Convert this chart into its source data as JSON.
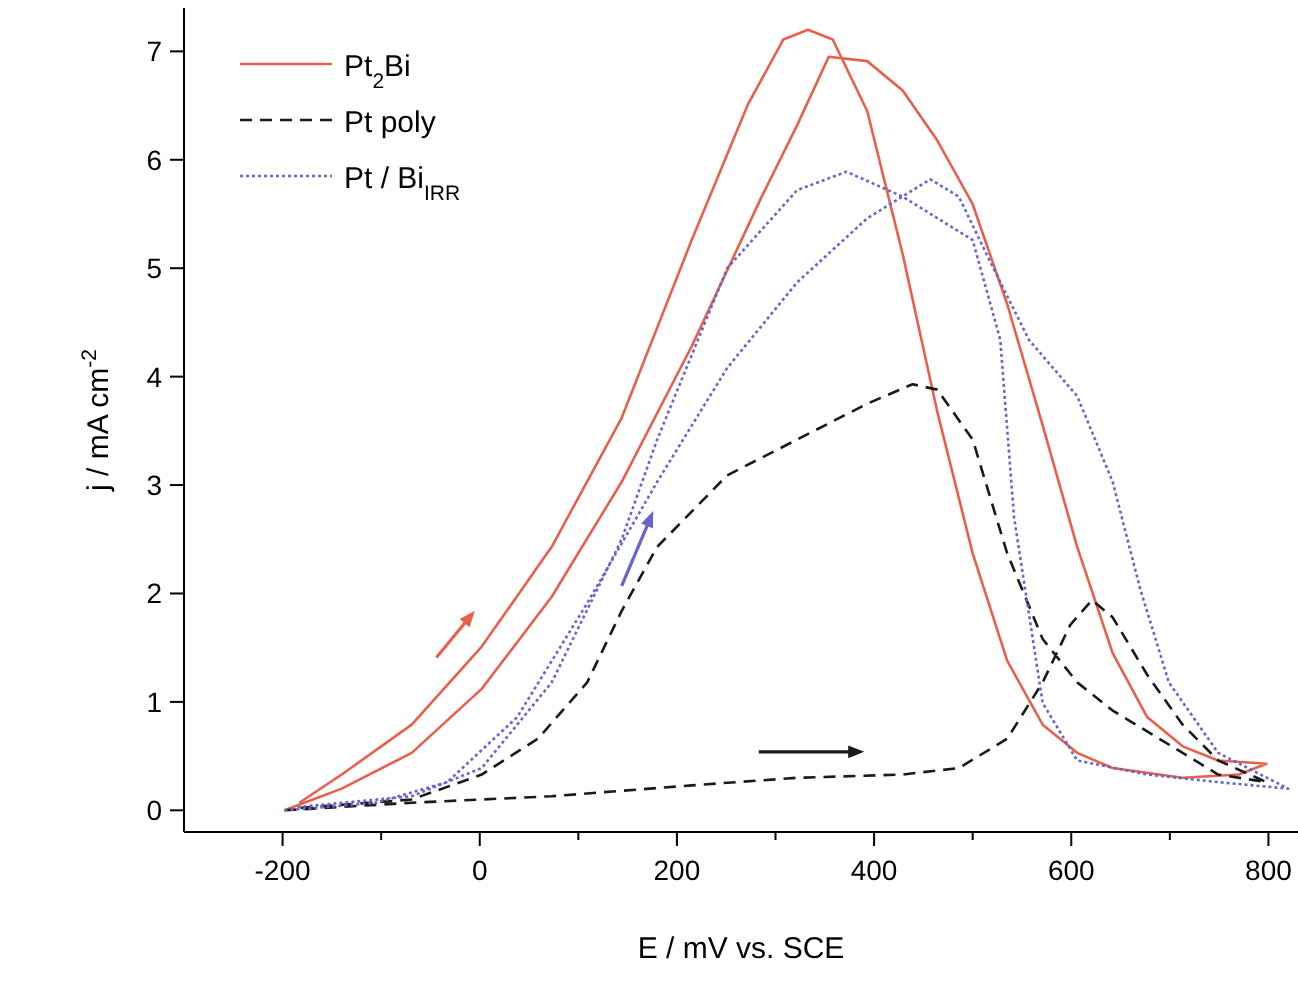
{
  "chart_data": {
    "type": "line",
    "xlabel": "E / mV vs. SCE",
    "ylabel": "j / mA cm$^{-2}$",
    "xlim": [
      -300,
      830
    ],
    "ylim": [
      -0.2,
      7.4
    ],
    "xticks": [
      -200,
      {
        "value": -100,
        "label": null
      },
      0,
      {
        "value": 100,
        "label": null
      },
      200,
      {
        "value": 300,
        "label": null
      },
      400,
      {
        "value": 500,
        "label": null
      },
      600,
      {
        "value": 700,
        "label": null
      },
      800
    ],
    "yticks": [
      0,
      1,
      2,
      3,
      4,
      5,
      6,
      7
    ],
    "grid": false,
    "legend": "top left",
    "series": [
      {
        "name": "Pt$_{2}$Bi",
        "color": "#e8604c",
        "line_style": "solid",
        "x": [
          -198,
          -140,
          -69,
          2,
          73,
          144,
          215,
          286,
          322,
          354,
          393,
          429,
          464,
          500,
          535,
          571,
          606,
          642,
          677,
          713,
          749,
          798,
          770,
          713,
          642,
          606,
          571,
          535,
          500,
          464,
          429,
          393,
          358,
          333,
          308,
          272,
          215,
          144,
          73,
          2,
          -69,
          -140,
          -183
        ],
        "values": [
          0,
          0.2,
          0.53,
          1.12,
          1.97,
          3.03,
          4.28,
          5.66,
          6.32,
          6.95,
          6.91,
          6.64,
          6.18,
          5.59,
          4.67,
          3.55,
          2.43,
          1.45,
          0.86,
          0.59,
          0.46,
          0.43,
          0.33,
          0.3,
          0.39,
          0.53,
          0.79,
          1.38,
          2.37,
          3.68,
          5.13,
          6.45,
          7.11,
          7.2,
          7.11,
          6.51,
          5.26,
          3.62,
          2.43,
          1.51,
          0.79,
          0.33,
          0.07
        ]
      },
      {
        "name": "Pt poly",
        "color": "#1a1a1a",
        "line_style": "dashed",
        "x": [
          -198,
          -69,
          73,
          215,
          322,
          429,
          486,
          535,
          571,
          599,
          621,
          642,
          677,
          713,
          749,
          798,
          749,
          713,
          642,
          606,
          571,
          535,
          500,
          464,
          439,
          393,
          322,
          251,
          180,
          144,
          109,
          59,
          2,
          -69,
          -185
        ],
        "values": [
          0,
          0.07,
          0.13,
          0.23,
          0.3,
          0.33,
          0.39,
          0.66,
          1.18,
          1.71,
          1.94,
          1.78,
          1.25,
          0.79,
          0.46,
          0.26,
          0.33,
          0.53,
          0.92,
          1.18,
          1.58,
          2.37,
          3.42,
          3.88,
          3.93,
          3.75,
          3.42,
          3.09,
          2.43,
          1.84,
          1.18,
          0.66,
          0.33,
          0.1,
          0.02
        ]
      },
      {
        "name": "Pt / Bi$_{IRR}$",
        "color": "#6666cc",
        "line_style": "dotted",
        "x": [
          -198,
          -105,
          -33,
          38,
          109,
          180,
          251,
          322,
          393,
          457,
          486,
          514,
          557,
          606,
          642,
          670,
          699,
          749,
          820,
          749,
          677,
          606,
          571,
          542,
          528,
          500,
          429,
          372,
          322,
          251,
          180,
          144,
          73,
          2,
          -69,
          -185
        ],
        "values": [
          0,
          0.07,
          0.26,
          0.86,
          1.91,
          3.03,
          4.08,
          4.87,
          5.46,
          5.82,
          5.66,
          5.13,
          4.34,
          3.82,
          3.03,
          2.04,
          1.18,
          0.53,
          0.2,
          0.26,
          0.33,
          0.46,
          0.99,
          2.7,
          4.34,
          5.26,
          5.66,
          5.89,
          5.72,
          5.0,
          3.42,
          2.5,
          1.18,
          0.39,
          0.13,
          0.03
        ]
      }
    ]
  }
}
